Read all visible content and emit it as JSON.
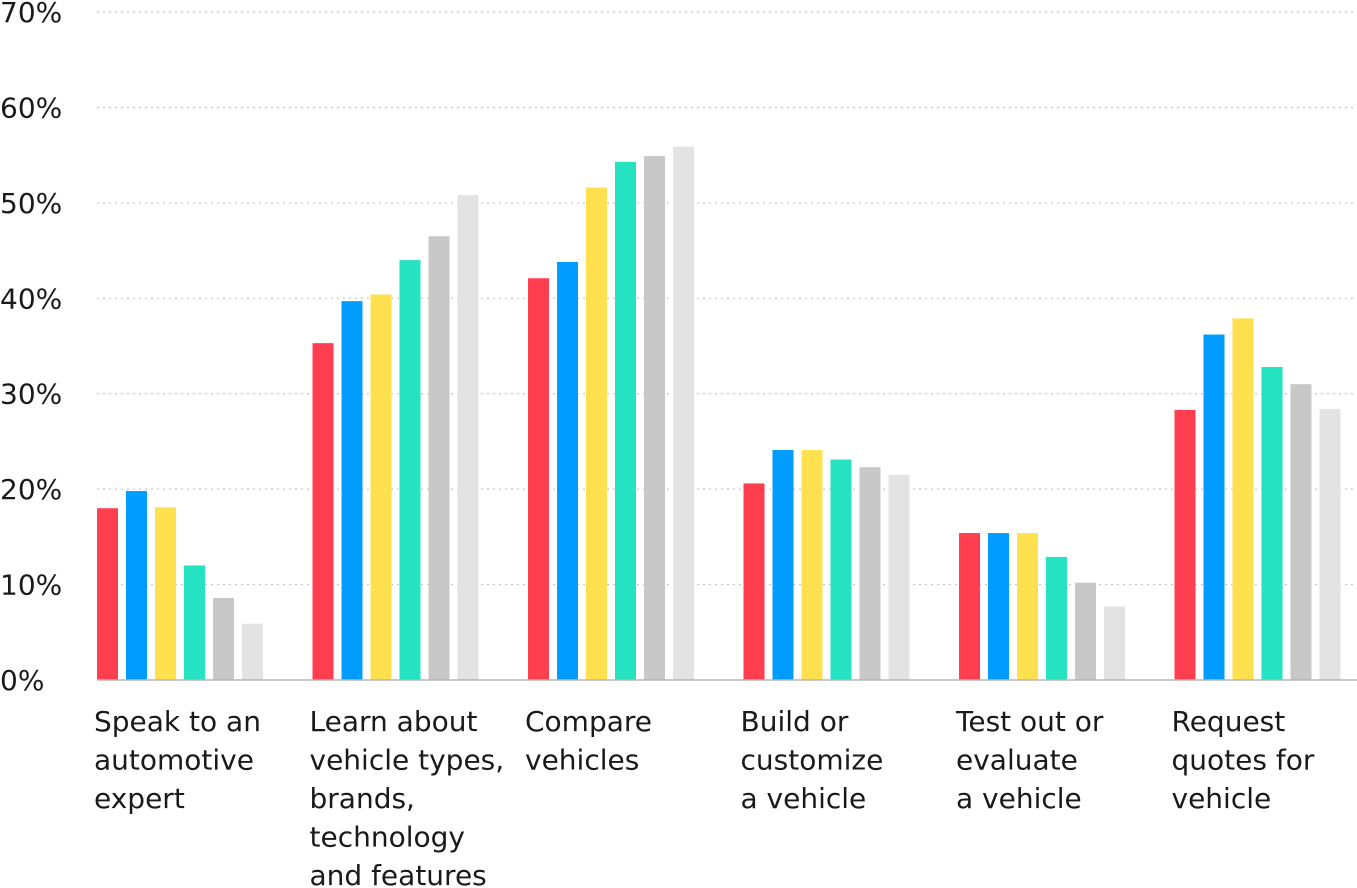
{
  "chart_data": {
    "type": "bar",
    "title": "",
    "xlabel": "",
    "ylabel": "",
    "ylim": [
      0,
      70
    ],
    "yticks": [
      0,
      10,
      20,
      30,
      40,
      50,
      60,
      70
    ],
    "ytick_labels": [
      "0%",
      "10%",
      "20%",
      "30%",
      "40%",
      "50%",
      "60%",
      "70%"
    ],
    "grid": true,
    "legend": "none",
    "categories": [
      "Speak to an automotive expert",
      "Learn about vehicle types, brands, technology and features",
      "Compare vehicles",
      "Build or customize a vehicle",
      "Test out or evaluate a vehicle",
      "Request quotes for vehicle"
    ],
    "category_lines": [
      [
        "Speak to an",
        "automotive",
        "expert"
      ],
      [
        "Learn about",
        "vehicle types,",
        "brands,",
        "technology",
        "and features"
      ],
      [
        "Compare",
        "vehicles"
      ],
      [
        "Build or",
        "customize",
        "a vehicle"
      ],
      [
        "Test out or",
        "evaluate",
        "a vehicle"
      ],
      [
        "Request",
        "quotes for",
        "vehicle"
      ]
    ],
    "series": [
      {
        "color": "#ff3f4f",
        "values": [
          18.0,
          35.3,
          42.1,
          20.6,
          15.4,
          28.3
        ]
      },
      {
        "color": "#009cff",
        "values": [
          19.8,
          39.7,
          43.8,
          24.1,
          15.4,
          36.2
        ]
      },
      {
        "color": "#ffe150",
        "values": [
          18.1,
          40.4,
          51.6,
          24.1,
          15.4,
          37.9
        ]
      },
      {
        "color": "#25e2c1",
        "values": [
          12.0,
          44.0,
          54.3,
          23.1,
          12.9,
          32.8
        ]
      },
      {
        "color": "#c8c8c8",
        "values": [
          8.6,
          46.5,
          54.9,
          22.3,
          10.2,
          31.0
        ]
      },
      {
        "color": "#e3e3e3",
        "values": [
          5.9,
          50.8,
          55.9,
          21.5,
          7.7,
          28.4
        ]
      }
    ]
  }
}
